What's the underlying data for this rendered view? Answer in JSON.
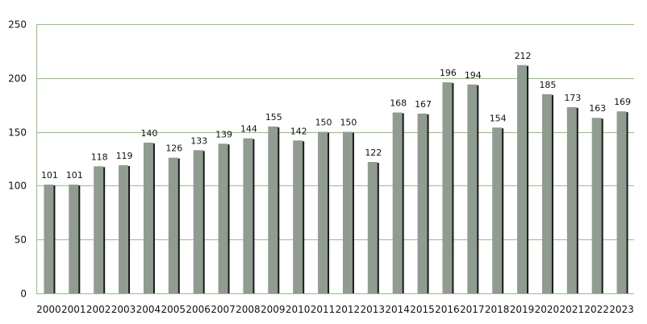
{
  "chart_data": {
    "type": "bar",
    "title": "",
    "xlabel": "",
    "ylabel": "",
    "categories": [
      "2000",
      "2001",
      "2002",
      "2003",
      "2004",
      "2005",
      "2006",
      "2007",
      "2008",
      "2009",
      "2010",
      "2011",
      "2012",
      "2013",
      "2014",
      "2015",
      "2016",
      "2017",
      "2018",
      "2019",
      "2020",
      "2021",
      "2022",
      "2023"
    ],
    "values": [
      101,
      101,
      118,
      119,
      140,
      126,
      133,
      139,
      144,
      155,
      142,
      150,
      150,
      122,
      168,
      167,
      196,
      194,
      154,
      212,
      185,
      173,
      163,
      169
    ],
    "data_labels": [
      "101",
      "101",
      "118",
      "119",
      "140",
      "126",
      "133",
      "139",
      "144",
      "155",
      "142",
      "150",
      "150",
      "122",
      "168",
      "167",
      "196",
      "194",
      "154",
      "212",
      "185",
      "173",
      "163",
      "169"
    ],
    "ylim": [
      0,
      250
    ],
    "yticks": [
      0,
      50,
      100,
      150,
      200,
      250
    ],
    "ytick_labels": [
      "0",
      "50",
      "100",
      "150",
      "200",
      "250"
    ],
    "grid": true,
    "legend": "none",
    "colors": {
      "bar": "#8f9c8f",
      "bar_shadow": "#1a1a1a",
      "grid": "#9dbb8a",
      "axis": "#9dbb8a"
    }
  }
}
